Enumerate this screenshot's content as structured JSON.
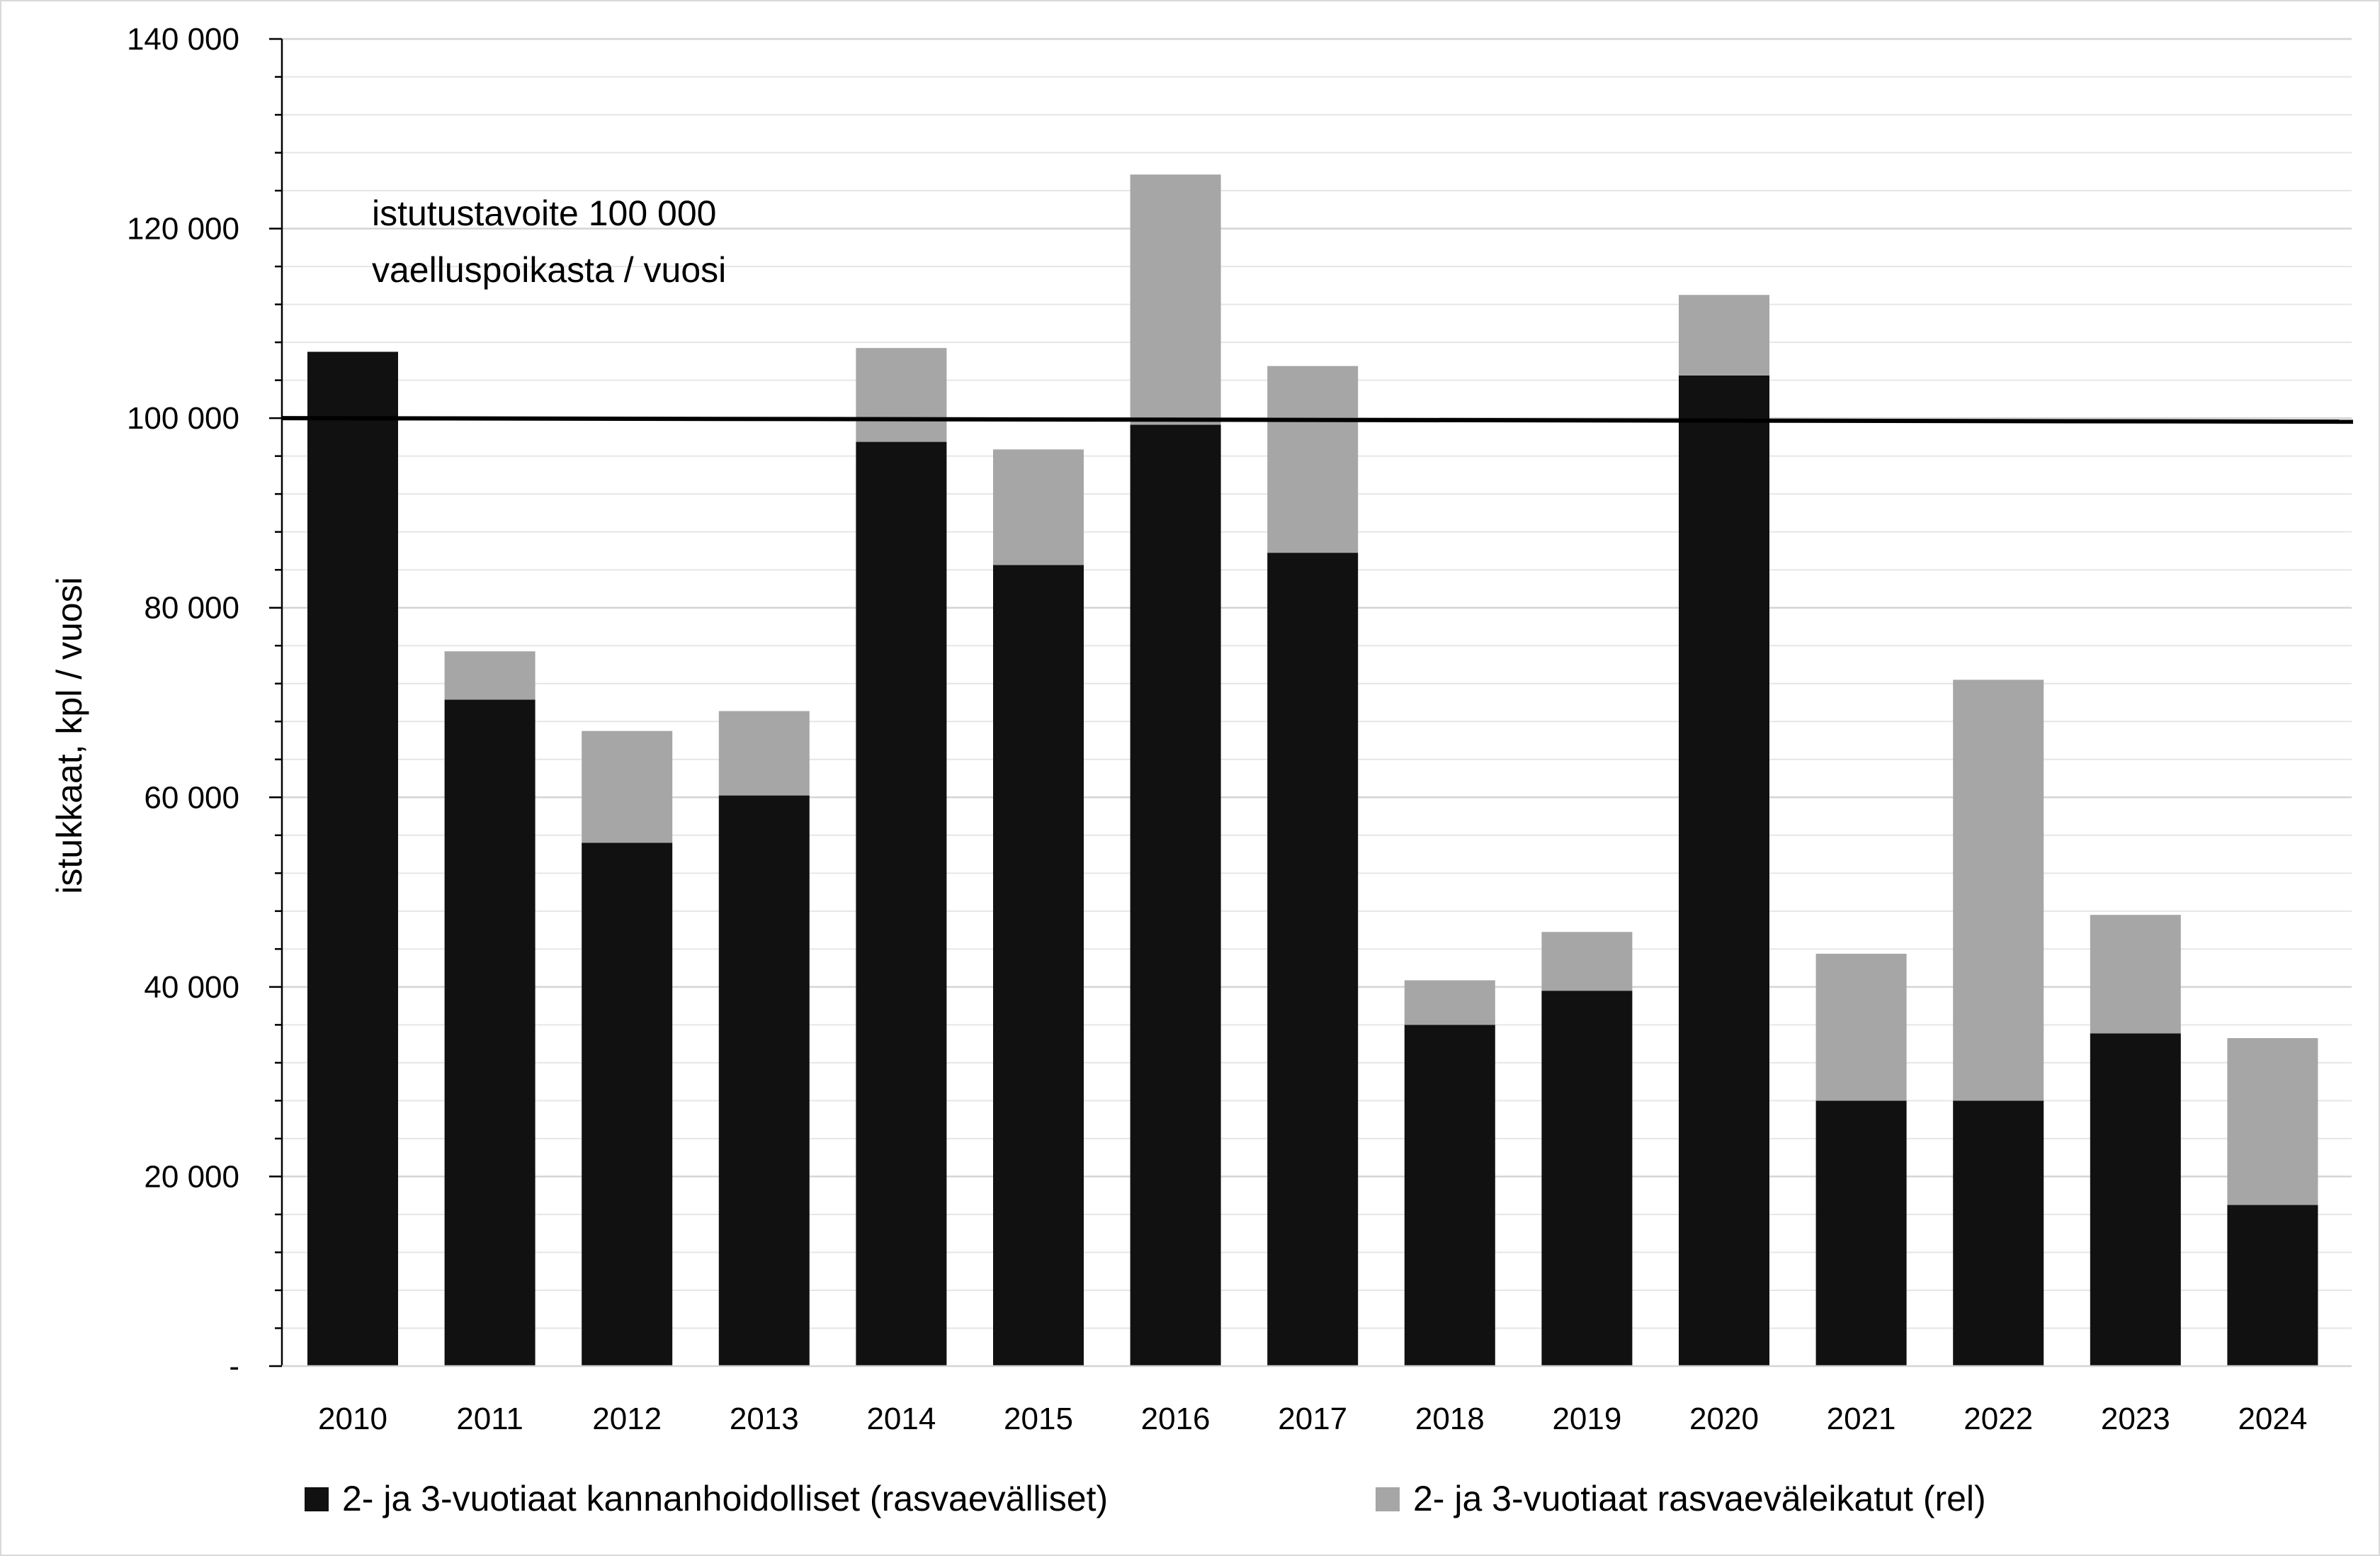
{
  "chart_data": {
    "type": "bar",
    "stacked": true,
    "categories": [
      "2010",
      "2011",
      "2012",
      "2013",
      "2014",
      "2015",
      "2016",
      "2017",
      "2018",
      "2019",
      "2020",
      "2021",
      "2022",
      "2023",
      "2024"
    ],
    "series": [
      {
        "name": "2- ja 3-vuotiaat kannanhoidolliset (rasvaevälliset)",
        "color": "#111111",
        "values": [
          107000,
          70300,
          55200,
          60200,
          97500,
          84500,
          99300,
          85800,
          36000,
          39600,
          104500,
          28000,
          28000,
          35100,
          17000
        ]
      },
      {
        "name": "2- ja 3-vuotiaat rasvaeväleikatut (rel)",
        "color": "#a6a6a6",
        "values": [
          0,
          5100,
          11800,
          8900,
          9900,
          12200,
          26400,
          19700,
          4700,
          6200,
          8500,
          15500,
          44400,
          12500,
          17600
        ]
      }
    ],
    "ylabel": "istukkaat, kpl / vuosi",
    "xlabel": "",
    "ylim": [
      0,
      140000
    ],
    "y_ticks": [
      {
        "value": 0,
        "label": "-"
      },
      {
        "value": 20000,
        "label": "20 000"
      },
      {
        "value": 40000,
        "label": "40 000"
      },
      {
        "value": 60000,
        "label": "60 000"
      },
      {
        "value": 80000,
        "label": "80 000"
      },
      {
        "value": 100000,
        "label": "100 000"
      },
      {
        "value": 120000,
        "label": "120 000"
      },
      {
        "value": 140000,
        "label": "140 000"
      }
    ],
    "y_minor_step": 4000,
    "grid": "horizontal",
    "target_line": {
      "value": 100000,
      "color": "#000000"
    },
    "annotation_lines": [
      "istutustavoite 100 000",
      "vaelluspoikasta / vuosi"
    ],
    "legend_position": "bottom",
    "colors": {
      "gridline": "#d9d9d9",
      "axis": "#000000",
      "frame": "#d9d9d9"
    }
  }
}
